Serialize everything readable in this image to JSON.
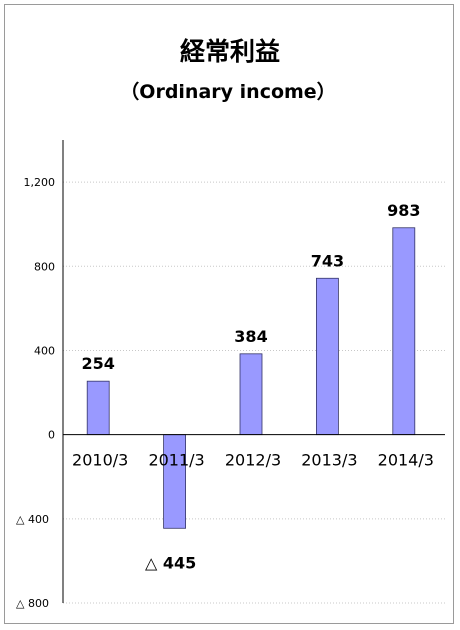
{
  "chart_data": {
    "type": "bar",
    "title": "経常利益",
    "subtitle": "（Ordinary income）",
    "categories": [
      "2010/3",
      "2011/3",
      "2012/3",
      "2013/3",
      "2014/3"
    ],
    "values": [
      254,
      -445,
      384,
      743,
      983
    ],
    "data_labels": [
      "254",
      "△ 445",
      "384",
      "743",
      "983"
    ],
    "ylim": [
      -800,
      1400
    ],
    "y_ticks": [
      {
        "value": 1200,
        "label": "1,200"
      },
      {
        "value": 800,
        "label": "800"
      },
      {
        "value": 400,
        "label": "400"
      },
      {
        "value": 0,
        "label": "0"
      },
      {
        "value": -400,
        "label": "△ 400"
      },
      {
        "value": -800,
        "label": "△ 800"
      }
    ],
    "grid": true,
    "bar_color": "#9999ff"
  }
}
